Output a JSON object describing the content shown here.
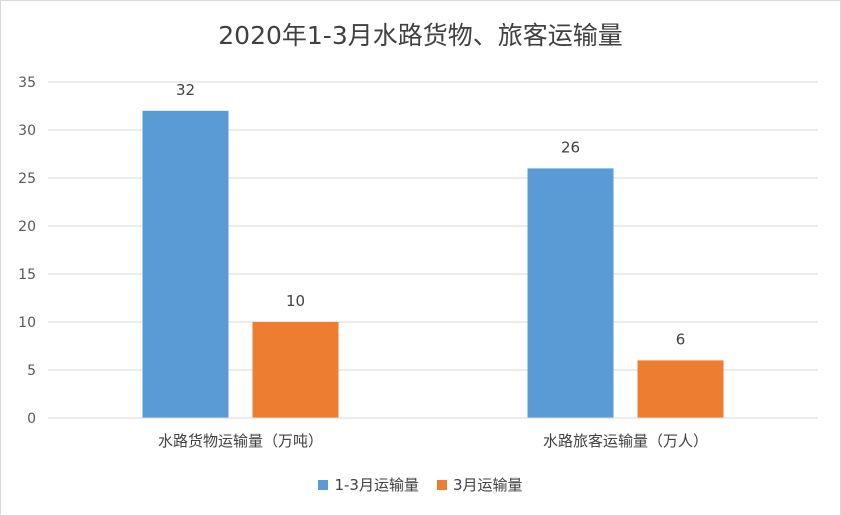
{
  "chart_data": {
    "type": "bar",
    "title": "2020年1-3月水路货物、旅客运输量",
    "categories": [
      "水路货物运输量（万吨）",
      "水路旅客运输量（万人）"
    ],
    "series": [
      {
        "name": "1-3月运输量",
        "values": [
          32,
          26
        ],
        "color": "#5b9bd5"
      },
      {
        "name": "3月运输量",
        "values": [
          10,
          6
        ],
        "color": "#ed7d31"
      }
    ],
    "ylim": [
      0,
      35
    ],
    "yticks": [
      0,
      5,
      10,
      15,
      20,
      25,
      30,
      35
    ],
    "grid": true,
    "legend": "bottom"
  }
}
